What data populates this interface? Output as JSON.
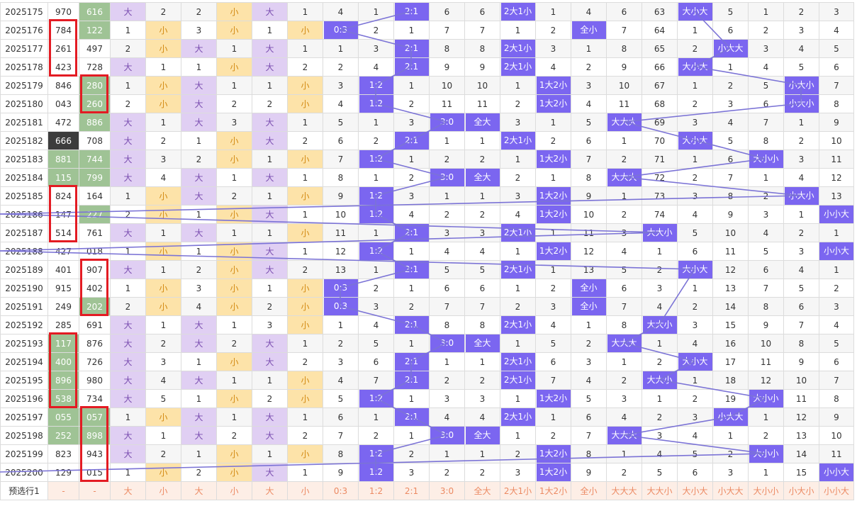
{
  "colors": {
    "block": "#7b66f0",
    "line": "#7b73d6",
    "red_box": "#e31b23",
    "green": "#9fc395",
    "da": "#e0cff3",
    "xiao": "#fde3a9"
  },
  "rows": [
    {
      "issue": "2025175",
      "n1": "970",
      "n2": "616",
      "c": [
        "大",
        "2",
        "2",
        "小",
        "大",
        "1",
        "4",
        "1",
        "2:1",
        "6",
        "6",
        "2大1小",
        "1",
        "4",
        "6",
        "63",
        "大小大",
        "5",
        "1",
        "2",
        "3"
      ]
    },
    {
      "issue": "2025176",
      "n1": "784",
      "n2": "122",
      "c": [
        "1",
        "小",
        "3",
        "小",
        "1",
        "小",
        "0:3",
        "2",
        "1",
        "7",
        "7",
        "1",
        "2",
        "全小",
        "7",
        "64",
        "1",
        "6",
        "2",
        "3",
        "4"
      ]
    },
    {
      "issue": "2025177",
      "n1": "261",
      "n2": "497",
      "c": [
        "2",
        "小",
        "大",
        "1",
        "大",
        "1",
        "1",
        "3",
        "2:1",
        "8",
        "8",
        "2大1小",
        "3",
        "1",
        "8",
        "65",
        "2",
        "小大大",
        "3",
        "4",
        "5"
      ]
    },
    {
      "issue": "2025178",
      "n1": "423",
      "n2": "728",
      "c": [
        "大",
        "1",
        "1",
        "小",
        "大",
        "2",
        "2",
        "4",
        "2:1",
        "9",
        "9",
        "2大1小",
        "4",
        "2",
        "9",
        "66",
        "大小大",
        "1",
        "4",
        "5",
        "6"
      ]
    },
    {
      "issue": "2025179",
      "n1": "846",
      "n2": "280",
      "c": [
        "1",
        "小",
        "大",
        "1",
        "1",
        "小",
        "3",
        "1:2",
        "1",
        "10",
        "10",
        "1",
        "1大2小",
        "3",
        "10",
        "67",
        "1",
        "2",
        "5",
        "小大小",
        "7"
      ]
    },
    {
      "issue": "2025180",
      "n1": "043",
      "n2": "260",
      "c": [
        "2",
        "小",
        "大",
        "2",
        "2",
        "小",
        "4",
        "1:2",
        "2",
        "11",
        "11",
        "2",
        "1大2小",
        "4",
        "11",
        "68",
        "2",
        "3",
        "6",
        "小大小",
        "8"
      ]
    },
    {
      "issue": "2025181",
      "n1": "472",
      "n2": "886",
      "c": [
        "大",
        "1",
        "大",
        "3",
        "大",
        "1",
        "5",
        "1",
        "3",
        "3:0",
        "全大",
        "3",
        "1",
        "5",
        "大大大",
        "69",
        "3",
        "4",
        "7",
        "1",
        "9"
      ]
    },
    {
      "issue": "2025182",
      "n1": "666",
      "n2": "708",
      "c": [
        "大",
        "2",
        "1",
        "小",
        "大",
        "2",
        "6",
        "2",
        "2:1",
        "1",
        "1",
        "2大1小",
        "2",
        "6",
        "1",
        "70",
        "大小大",
        "5",
        "8",
        "2",
        "10"
      ]
    },
    {
      "issue": "2025183",
      "n1": "881",
      "n2": "744",
      "c": [
        "大",
        "3",
        "2",
        "小",
        "1",
        "小",
        "7",
        "1:2",
        "1",
        "2",
        "2",
        "1",
        "1大2小",
        "7",
        "2",
        "71",
        "1",
        "6",
        "大小小",
        "3",
        "11"
      ]
    },
    {
      "issue": "2025184",
      "n1": "115",
      "n2": "799",
      "c": [
        "大",
        "4",
        "大",
        "1",
        "大",
        "1",
        "8",
        "1",
        "2",
        "3:0",
        "全大",
        "2",
        "1",
        "8",
        "大大大",
        "72",
        "2",
        "7",
        "1",
        "4",
        "12"
      ]
    },
    {
      "issue": "2025185",
      "n1": "824",
      "n2": "164",
      "c": [
        "1",
        "小",
        "大",
        "2",
        "1",
        "小",
        "9",
        "1:2",
        "3",
        "1",
        "1",
        "3",
        "1大2小",
        "9",
        "1",
        "73",
        "3",
        "8",
        "2",
        "小大小",
        "13"
      ]
    },
    {
      "issue": "2025186",
      "n1": "147",
      "n2": "227",
      "c": [
        "2",
        "小",
        "1",
        "小",
        "大",
        "1",
        "10",
        "1:2",
        "4",
        "2",
        "2",
        "4",
        "1大2小",
        "10",
        "2",
        "74",
        "4",
        "9",
        "3",
        "1",
        "小小大"
      ]
    },
    {
      "issue": "2025187",
      "n1": "514",
      "n2": "761",
      "c": [
        "大",
        "1",
        "大",
        "1",
        "1",
        "小",
        "11",
        "1",
        "2:1",
        "3",
        "3",
        "2大1小",
        "1",
        "11",
        "3",
        "大大小",
        "5",
        "10",
        "4",
        "2",
        "1"
      ]
    },
    {
      "issue": "2025188",
      "n1": "427",
      "n2": "018",
      "c": [
        "1",
        "小",
        "1",
        "小",
        "大",
        "1",
        "12",
        "1:2",
        "1",
        "4",
        "4",
        "1",
        "1大2小",
        "12",
        "4",
        "1",
        "6",
        "11",
        "5",
        "3",
        "小小大"
      ]
    },
    {
      "issue": "2025189",
      "n1": "401",
      "n2": "907",
      "c": [
        "大",
        "1",
        "2",
        "小",
        "大",
        "2",
        "13",
        "1",
        "2:1",
        "5",
        "5",
        "2大1小",
        "1",
        "13",
        "5",
        "2",
        "大小大",
        "12",
        "6",
        "4",
        "1"
      ]
    },
    {
      "issue": "2025190",
      "n1": "915",
      "n2": "402",
      "c": [
        "1",
        "小",
        "3",
        "小",
        "1",
        "小",
        "0:3",
        "2",
        "1",
        "6",
        "6",
        "1",
        "2",
        "全小",
        "6",
        "3",
        "1",
        "13",
        "7",
        "5",
        "2"
      ]
    },
    {
      "issue": "2025191",
      "n1": "249",
      "n2": "202",
      "c": [
        "2",
        "小",
        "4",
        "小",
        "2",
        "小",
        "0:3",
        "3",
        "2",
        "7",
        "7",
        "2",
        "3",
        "全小",
        "7",
        "4",
        "2",
        "14",
        "8",
        "6",
        "3"
      ]
    },
    {
      "issue": "2025192",
      "n1": "285",
      "n2": "691",
      "c": [
        "大",
        "1",
        "大",
        "1",
        "3",
        "小",
        "1",
        "4",
        "2:1",
        "8",
        "8",
        "2大1小",
        "4",
        "1",
        "8",
        "大大小",
        "3",
        "15",
        "9",
        "7",
        "4"
      ]
    },
    {
      "issue": "2025193",
      "n1": "117",
      "n2": "876",
      "c": [
        "大",
        "2",
        "大",
        "2",
        "大",
        "1",
        "2",
        "5",
        "1",
        "3:0",
        "全大",
        "1",
        "5",
        "2",
        "大大大",
        "1",
        "4",
        "16",
        "10",
        "8",
        "5"
      ]
    },
    {
      "issue": "2025194",
      "n1": "400",
      "n2": "726",
      "c": [
        "大",
        "3",
        "1",
        "小",
        "大",
        "2",
        "3",
        "6",
        "2:1",
        "1",
        "1",
        "2大1小",
        "6",
        "3",
        "1",
        "2",
        "大小大",
        "17",
        "11",
        "9",
        "6"
      ]
    },
    {
      "issue": "2025195",
      "n1": "896",
      "n2": "980",
      "c": [
        "大",
        "4",
        "大",
        "1",
        "1",
        "小",
        "4",
        "7",
        "2:1",
        "2",
        "2",
        "2大1小",
        "7",
        "4",
        "2",
        "大大小",
        "1",
        "18",
        "12",
        "10",
        "7"
      ]
    },
    {
      "issue": "2025196",
      "n1": "538",
      "n2": "734",
      "c": [
        "大",
        "5",
        "1",
        "小",
        "2",
        "小",
        "5",
        "1:2",
        "1",
        "3",
        "3",
        "1",
        "1大2小",
        "5",
        "3",
        "1",
        "2",
        "19",
        "大小小",
        "11",
        "8"
      ]
    },
    {
      "issue": "2025197",
      "n1": "055",
      "n2": "057",
      "c": [
        "1",
        "小",
        "大",
        "1",
        "大",
        "1",
        "6",
        "1",
        "2:1",
        "4",
        "4",
        "2大1小",
        "1",
        "6",
        "4",
        "2",
        "3",
        "小大大",
        "1",
        "12",
        "9"
      ]
    },
    {
      "issue": "2025198",
      "n1": "252",
      "n2": "898",
      "c": [
        "大",
        "1",
        "大",
        "2",
        "大",
        "2",
        "7",
        "2",
        "1",
        "3:0",
        "全大",
        "1",
        "2",
        "7",
        "大大大",
        "3",
        "4",
        "1",
        "2",
        "13",
        "10"
      ]
    },
    {
      "issue": "2025199",
      "n1": "823",
      "n2": "943",
      "c": [
        "大",
        "2",
        "1",
        "小",
        "1",
        "小",
        "8",
        "1:2",
        "2",
        "1",
        "1",
        "2",
        "1大2小",
        "8",
        "1",
        "4",
        "5",
        "2",
        "大小小",
        "14",
        "11"
      ]
    },
    {
      "issue": "2025200",
      "n1": "129",
      "n2": "015",
      "c": [
        "1",
        "小",
        "2",
        "小",
        "大",
        "1",
        "9",
        "1:2",
        "3",
        "2",
        "2",
        "3",
        "1大2小",
        "9",
        "2",
        "5",
        "6",
        "3",
        "1",
        "15",
        "小小大"
      ]
    }
  ],
  "footer": {
    "label": "预选行1",
    "c": [
      "-",
      "-",
      "大",
      "小",
      "大",
      "小",
      "大",
      "小",
      "0:3",
      "1:2",
      "2:1",
      "3:0",
      "全大",
      "2大1小",
      "1大2小",
      "全小",
      "大大大",
      "大大小",
      "大小大",
      "小大大",
      "大小小",
      "小大小",
      "小小大"
    ]
  }
}
